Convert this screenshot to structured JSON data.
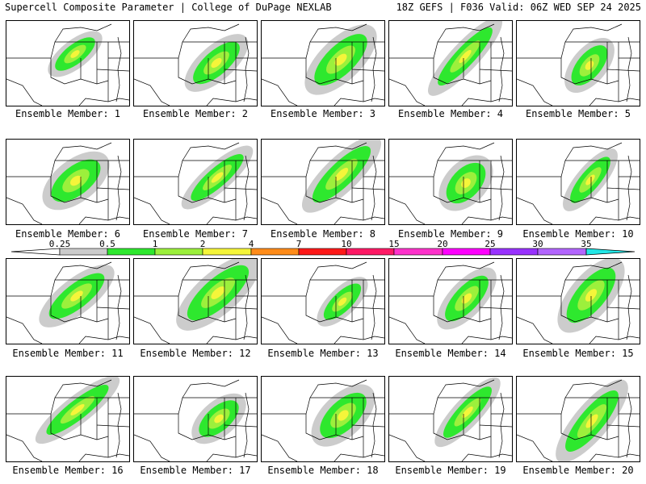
{
  "header": {
    "title_left": "Supercell Composite Parameter | College of DuPage NEXLAB",
    "title_right": "18Z GEFS | F036 Valid: 06Z WED SEP 24 2025"
  },
  "colorbar": {
    "ticks": [
      "0.25",
      "0.5",
      "1",
      "2",
      "4",
      "7",
      "10",
      "15",
      "20",
      "25",
      "30",
      "35"
    ],
    "colors": [
      "#cccccc",
      "#2ee82e",
      "#9cf03c",
      "#f5f53a",
      "#ff8c1a",
      "#ff1a1a",
      "#ff1a66",
      "#ff33cc",
      "#ff00ff",
      "#9933ff",
      "#b366ff",
      "#22e6e6"
    ]
  },
  "members": [
    {
      "label": "Ensemble Member: 1"
    },
    {
      "label": "Ensemble Member: 2"
    },
    {
      "label": "Ensemble Member: 3"
    },
    {
      "label": "Ensemble Member: 4"
    },
    {
      "label": "Ensemble Member: 5"
    },
    {
      "label": "Ensemble Member: 6"
    },
    {
      "label": "Ensemble Member: 7"
    },
    {
      "label": "Ensemble Member: 8"
    },
    {
      "label": "Ensemble Member: 9"
    },
    {
      "label": "Ensemble Member: 10"
    },
    {
      "label": "Ensemble Member: 11"
    },
    {
      "label": "Ensemble Member: 12"
    },
    {
      "label": "Ensemble Member: 13"
    },
    {
      "label": "Ensemble Member: 14"
    },
    {
      "label": "Ensemble Member: 15"
    },
    {
      "label": "Ensemble Member: 16"
    },
    {
      "label": "Ensemble Member: 17"
    },
    {
      "label": "Ensemble Member: 18"
    },
    {
      "label": "Ensemble Member: 19"
    },
    {
      "label": "Ensemble Member: 20"
    }
  ]
}
